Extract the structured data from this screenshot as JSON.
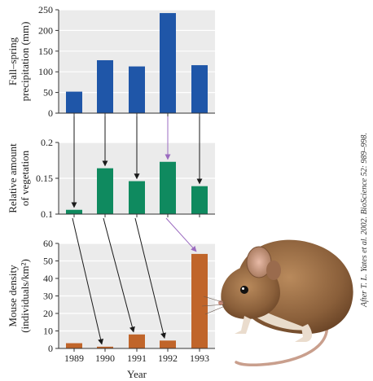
{
  "chart_data": [
    {
      "type": "bar",
      "categories": [
        "1989",
        "1990",
        "1991",
        "1992",
        "1993"
      ],
      "values": [
        52,
        128,
        113,
        242,
        116
      ],
      "ylabel": [
        "Fall–spring",
        "precipitation (mm)"
      ],
      "ylim": [
        0,
        250
      ],
      "yticks": [
        0,
        50,
        100,
        150,
        200,
        250
      ],
      "ytick_labels": [
        "0",
        "50",
        "100",
        "150",
        "200",
        "250"
      ],
      "color": "#1f56a8",
      "grid": true
    },
    {
      "type": "bar",
      "categories": [
        "1989",
        "1990",
        "1991",
        "1992",
        "1993"
      ],
      "values": [
        0.106,
        0.164,
        0.146,
        0.173,
        0.139
      ],
      "ylabel": [
        "Relative amount",
        "of vegetation"
      ],
      "ylim": [
        0.1,
        0.2
      ],
      "yticks": [
        0.1,
        0.15,
        0.2
      ],
      "ytick_labels": [
        "0.1",
        "0.15",
        "0.2"
      ],
      "color": "#0f8a5f",
      "grid": true
    },
    {
      "type": "bar",
      "categories": [
        "1989",
        "1990",
        "1991",
        "1992",
        "1993"
      ],
      "values": [
        3,
        1,
        8,
        4.5,
        54
      ],
      "ylabel": [
        "Mouse density",
        "(individuals/km²)"
      ],
      "ylim": [
        0,
        60
      ],
      "yticks": [
        0,
        10,
        20,
        30,
        40,
        50,
        60
      ],
      "ytick_labels": [
        "0",
        "10",
        "20",
        "30",
        "40",
        "50",
        "60"
      ],
      "color": "#c0652a",
      "grid": true
    }
  ],
  "xlabel": "Year",
  "x_tick_labels": [
    "1989",
    "1990",
    "1991",
    "1992",
    "1993"
  ],
  "arrows": {
    "precip_to_veg": [
      "1989",
      "1990",
      "1991",
      "1992",
      "1993"
    ],
    "veg_to_mouse": [
      [
        "1989",
        "1990"
      ],
      [
        "1990",
        "1991"
      ],
      [
        "1991",
        "1992"
      ],
      [
        "1992",
        "1993"
      ]
    ],
    "highlight_year": "1992",
    "arrow_color": "#1a1a1a",
    "highlight_color": "#9b6bc0"
  },
  "credit": "After T. L. Yates et al. 2002. BioScience 52: 989–998.",
  "colors": {
    "panel_bg": "#ebebeb",
    "grid": "#ffffff",
    "axis": "#333333"
  }
}
